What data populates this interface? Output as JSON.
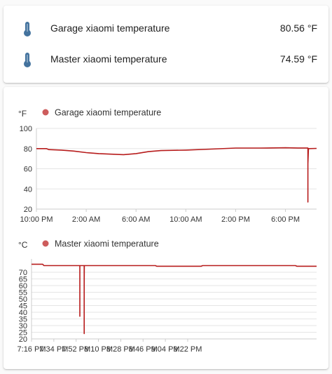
{
  "entities": [
    {
      "name": "Garage xiaomi temperature",
      "value": "80.56 °F",
      "icon": "thermometer-icon"
    },
    {
      "name": "Master xiaomi temperature",
      "value": "74.59 °F",
      "icon": "thermometer-icon"
    }
  ],
  "colors": {
    "icon": "#44739e",
    "series": "#b71c1c",
    "legend_dot": "#cd5c5c",
    "axis": "#cccccc",
    "grid": "#e5e5e5",
    "text": "#333333"
  },
  "chart_data": [
    {
      "type": "line",
      "unit": "°F",
      "series": [
        {
          "name": "Garage xiaomi temperature",
          "points": [
            [
              0,
              80
            ],
            [
              0.8,
              80
            ],
            [
              1,
              79
            ],
            [
              2,
              78.5
            ],
            [
              3,
              77.5
            ],
            [
              4,
              76
            ],
            [
              5,
              75
            ],
            [
              6,
              74.5
            ],
            [
              7,
              74
            ],
            [
              8,
              75
            ],
            [
              9,
              77
            ],
            [
              10,
              78
            ],
            [
              12,
              78.5
            ],
            [
              14,
              79.5
            ],
            [
              16,
              80.5
            ],
            [
              18,
              80.5
            ],
            [
              20,
              80.8
            ],
            [
              21,
              80.6
            ],
            [
              21.8,
              80.6
            ],
            [
              21.8,
              27
            ],
            [
              21.8,
              65
            ],
            [
              21.85,
              80
            ],
            [
              22.5,
              80.2
            ]
          ]
        }
      ],
      "ylim": [
        20,
        100
      ],
      "yticks": [
        100,
        80,
        60,
        40,
        20
      ],
      "xlim": [
        0,
        22.5
      ],
      "xticks": [
        {
          "x": 0,
          "label": "10:00 PM"
        },
        {
          "x": 4,
          "label": "2:00 AM"
        },
        {
          "x": 8,
          "label": "6:00 AM"
        },
        {
          "x": 12,
          "label": "10:00 AM"
        },
        {
          "x": 16,
          "label": "2:00 PM"
        },
        {
          "x": 20,
          "label": "6:00 PM"
        }
      ],
      "grid": "horizontal",
      "legend": "top"
    },
    {
      "type": "line",
      "unit": "°C",
      "series": [
        {
          "name": "Master xiaomi temperature",
          "points": [
            [
              0,
              76
            ],
            [
              9,
              76
            ],
            [
              10,
              75
            ],
            [
              39,
              75
            ],
            [
              39,
              37
            ],
            [
              39,
              75
            ],
            [
              42.5,
              75
            ],
            [
              42.5,
              24
            ],
            [
              42.5,
              60
            ],
            [
              42.6,
              75
            ],
            [
              100,
              75
            ],
            [
              101,
              74.5
            ],
            [
              137,
              74.5
            ],
            [
              138,
              75
            ],
            [
              213,
              75
            ],
            [
              214,
              74.5
            ],
            [
              230,
              74.5
            ]
          ],
          "segments_note_break": [
            39,
            42.5
          ]
        }
      ],
      "ylim": [
        20,
        80
      ],
      "yticks": [
        70,
        65,
        60,
        55,
        50,
        45,
        40,
        35,
        30,
        25,
        20
      ],
      "xlim": [
        0,
        230
      ],
      "xticks": [
        {
          "x": 0,
          "label": "7:16 PM"
        },
        {
          "x": 18,
          "label": "7:34 PM"
        },
        {
          "x": 36,
          "label": "7:52 PM"
        },
        {
          "x": 54,
          "label": "8:10 PM"
        },
        {
          "x": 72,
          "label": "8:28 PM"
        },
        {
          "x": 90,
          "label": "8:46 PM"
        },
        {
          "x": 108,
          "label": "9:04 PM"
        },
        {
          "x": 126,
          "label": "9:22 PM"
        }
      ],
      "grid": "horizontal",
      "legend": "top"
    }
  ]
}
